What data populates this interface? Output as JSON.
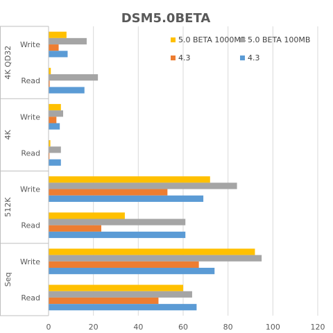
{
  "chart_data": {
    "type": "bar",
    "orientation": "horizontal",
    "title": "DSM5.0BETA",
    "xlim": [
      0,
      120
    ],
    "xticks": [
      0,
      20,
      40,
      60,
      80,
      100,
      120
    ],
    "grid": true,
    "legend_position": "top-right",
    "groups": [
      "4K QD32",
      "4K",
      "512K",
      "Seq"
    ],
    "categories": [
      {
        "group": "4K QD32",
        "label": "Write"
      },
      {
        "group": "4K QD32",
        "label": "Read"
      },
      {
        "group": "4K",
        "label": "Write"
      },
      {
        "group": "4K",
        "label": "Read"
      },
      {
        "group": "512K",
        "label": "Write"
      },
      {
        "group": "512K",
        "label": "Read"
      },
      {
        "group": "Seq",
        "label": "Write"
      },
      {
        "group": "Seq",
        "label": "Read"
      }
    ],
    "series": [
      {
        "name": "5.0 BETA 1000MB",
        "color": "#FFC000",
        "values": [
          8,
          1,
          5.5,
          0.8,
          72,
          34,
          92,
          60
        ]
      },
      {
        "name": "5.0 BETA 100MB",
        "color": "#A5A5A5",
        "values": [
          17,
          22,
          6.5,
          5.5,
          84,
          61,
          95,
          64
        ]
      },
      {
        "name": "4.3",
        "color": "#ED7D31",
        "values": [
          4.5,
          0.5,
          3.5,
          0.4,
          53,
          23.5,
          67,
          49
        ]
      },
      {
        "name": "4.3",
        "color": "#5B9BD5",
        "values": [
          8.5,
          16,
          5,
          5.5,
          69,
          61,
          74,
          66
        ]
      }
    ]
  }
}
